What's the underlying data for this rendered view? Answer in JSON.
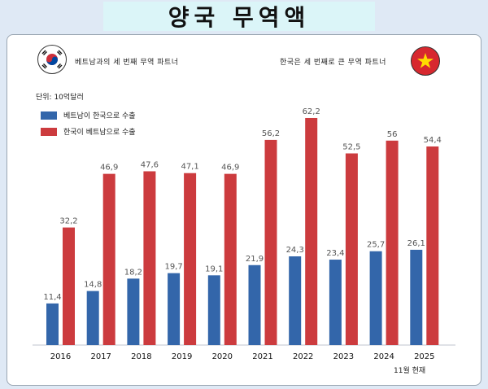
{
  "page_title": "양국 무역액",
  "header": {
    "left_text": "베트남과의 세 번째 무역 파트너",
    "right_text": "한국은 세 번째로 큰 무역 파트너"
  },
  "unit_label": "단위: 10억달러",
  "footnote": "11월 현재",
  "colors": {
    "series_blue": "#3366aa",
    "series_red": "#cc3b3e"
  },
  "chart_data": {
    "type": "bar",
    "title": "",
    "xlabel": "",
    "ylabel": "",
    "ylim": [
      0,
      70
    ],
    "categories": [
      "2016",
      "2017",
      "2018",
      "2019",
      "2020",
      "2021",
      "2022",
      "2023",
      "2024",
      "2025"
    ],
    "series": [
      {
        "name": "베트남이 한국으로 수출",
        "values": [
          11.4,
          14.8,
          18.2,
          19.7,
          19.1,
          21.9,
          24.3,
          23.4,
          25.7,
          26.1
        ],
        "labels": [
          "11,4",
          "14,8",
          "18,2",
          "19,7",
          "19,1",
          "21,9",
          "24,3",
          "23,4",
          "25,7",
          "26,1"
        ]
      },
      {
        "name": "한국이 베트남으로 수출",
        "values": [
          32.2,
          46.9,
          47.6,
          47.1,
          46.9,
          56.2,
          62.2,
          52.5,
          56,
          54.4
        ],
        "labels": [
          "32,2",
          "46,9",
          "47,6",
          "47,1",
          "46,9",
          "56,2",
          "62,2",
          "52,5",
          "56",
          "54,4"
        ]
      }
    ]
  }
}
